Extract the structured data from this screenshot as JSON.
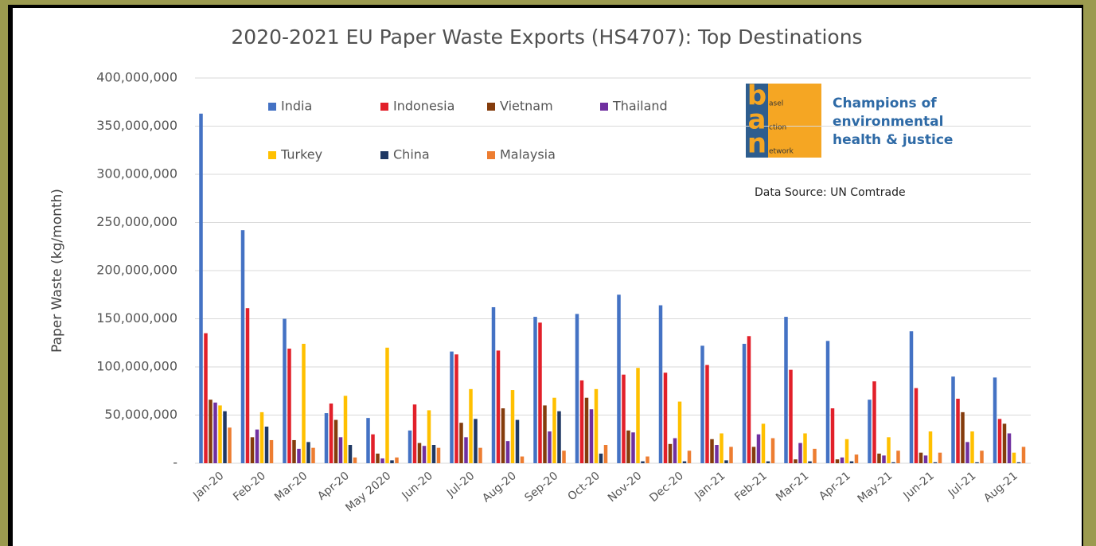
{
  "chart_data": {
    "type": "bar",
    "title": "2020-2021 EU Paper Waste Exports (HS4707): Top Destinations",
    "y_label": "Paper Waste (kg/month)",
    "annotation": "Data Source: UN Comtrade",
    "logo": {
      "lines": [
        {
          "initial": "b",
          "rest": "asel"
        },
        {
          "initial": "a",
          "rest": "ction"
        },
        {
          "initial": "n",
          "rest": "etwork"
        }
      ],
      "tagline": [
        "Champions of",
        "environmental",
        "health & justice"
      ]
    },
    "categories": [
      "Jan-20",
      "Feb-20",
      "Mar-20",
      "Apr-20",
      "May 2020",
      "Jun-20",
      "Jul-20",
      "Aug-20",
      "Sep-20",
      "Oct-20",
      "Nov-20",
      "Dec-20",
      "Jan-21",
      "Feb-21",
      "Mar-21",
      "Apr-21",
      "May-21",
      "Jun-21",
      "Jul-21",
      "Aug-21"
    ],
    "series": [
      {
        "name": "India",
        "color": "#4472c4",
        "values": [
          363000000,
          242000000,
          150000000,
          52000000,
          47000000,
          34000000,
          116000000,
          162000000,
          152000000,
          155000000,
          175000000,
          164000000,
          122000000,
          124000000,
          152000000,
          127000000,
          66000000,
          137000000,
          90000000,
          89000000
        ]
      },
      {
        "name": "Indonesia",
        "color": "#e2202a",
        "values": [
          135000000,
          161000000,
          119000000,
          62000000,
          30000000,
          61000000,
          113000000,
          117000000,
          146000000,
          86000000,
          92000000,
          94000000,
          102000000,
          132000000,
          97000000,
          57000000,
          85000000,
          78000000,
          67000000,
          46000000
        ]
      },
      {
        "name": "Vietnam",
        "color": "#843c0c",
        "values": [
          66000000,
          27000000,
          24000000,
          45000000,
          10000000,
          21000000,
          42000000,
          57000000,
          60000000,
          68000000,
          34000000,
          20000000,
          25000000,
          17000000,
          4000000,
          4000000,
          10000000,
          11000000,
          53000000,
          41000000
        ]
      },
      {
        "name": "Thailand",
        "color": "#7030a0",
        "values": [
          63000000,
          35000000,
          15000000,
          27000000,
          5000000,
          18000000,
          27000000,
          23000000,
          33000000,
          56000000,
          32000000,
          26000000,
          19000000,
          30000000,
          21000000,
          6000000,
          8000000,
          8000000,
          22000000,
          31000000
        ]
      },
      {
        "name": "Turkey",
        "color": "#ffc000",
        "values": [
          60000000,
          53000000,
          124000000,
          70000000,
          120000000,
          55000000,
          77000000,
          76000000,
          68000000,
          77000000,
          99000000,
          64000000,
          31000000,
          41000000,
          31000000,
          25000000,
          27000000,
          33000000,
          33000000,
          11000000
        ]
      },
      {
        "name": "China",
        "color": "#1f3864",
        "values": [
          54000000,
          38000000,
          22000000,
          19000000,
          3000000,
          19000000,
          46000000,
          45000000,
          54000000,
          10000000,
          2000000,
          2000000,
          3000000,
          2000000,
          2000000,
          2000000,
          1000000,
          1000000,
          1000000,
          1000000
        ]
      },
      {
        "name": "Malaysia",
        "color": "#ed7d31",
        "values": [
          37000000,
          24000000,
          16000000,
          6000000,
          6000000,
          16000000,
          16000000,
          7000000,
          13000000,
          19000000,
          7000000,
          13000000,
          17000000,
          26000000,
          15000000,
          9000000,
          13000000,
          11000000,
          13000000,
          17000000
        ]
      }
    ],
    "ylim": [
      0,
      400000000
    ],
    "yticks": [
      {
        "value": 0,
        "label": "-"
      },
      {
        "value": 50000000,
        "label": "50,000,000"
      },
      {
        "value": 100000000,
        "label": "100,000,000"
      },
      {
        "value": 150000000,
        "label": "150,000,000"
      },
      {
        "value": 200000000,
        "label": "200,000,000"
      },
      {
        "value": 250000000,
        "label": "250,000,000"
      },
      {
        "value": 300000000,
        "label": "300,000,000"
      },
      {
        "value": 350000000,
        "label": "350,000,000"
      },
      {
        "value": 400000000,
        "label": "400,000,000"
      }
    ],
    "grid": true
  }
}
